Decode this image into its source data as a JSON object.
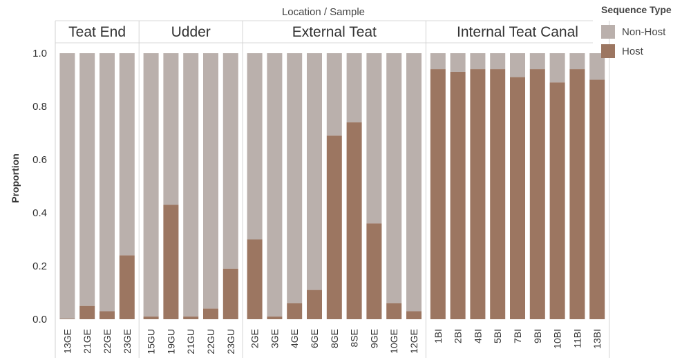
{
  "chart_data": {
    "type": "bar",
    "stacked": true,
    "title": "Location / Sample",
    "ylabel": "Proportion",
    "xlabel": "",
    "ylim": [
      0,
      1
    ],
    "yticks": [
      "0.0",
      "0.2",
      "0.4",
      "0.6",
      "0.8",
      "1.0"
    ],
    "grid": false,
    "legend": {
      "title": "Sequence Type",
      "placement": "top-right",
      "items": [
        {
          "label": "Non-Host",
          "color": "#BAB0AC"
        },
        {
          "label": "Host",
          "color": "#9C7661"
        }
      ]
    },
    "groups": [
      {
        "name": "Teat End",
        "categories": [
          "13GE",
          "21GE",
          "22GE",
          "23GE"
        ]
      },
      {
        "name": "Udder",
        "categories": [
          "15GU",
          "19GU",
          "21GU",
          "22GU",
          "23GU"
        ]
      },
      {
        "name": "External Teat",
        "categories": [
          "2GE",
          "3GE",
          "4GE",
          "6GE",
          "8GE",
          "8SE",
          "9GE",
          "10GE",
          "12GE"
        ]
      },
      {
        "name": "Internal Teat Canal",
        "categories": [
          "1BI",
          "2BI",
          "4BI",
          "5BI",
          "7BI",
          "9BI",
          "10BI",
          "11BI",
          "13BI"
        ]
      }
    ],
    "categories": [
      "13GE",
      "21GE",
      "22GE",
      "23GE",
      "15GU",
      "19GU",
      "21GU",
      "22GU",
      "23GU",
      "2GE",
      "3GE",
      "4GE",
      "6GE",
      "8GE",
      "8SE",
      "9GE",
      "10GE",
      "12GE",
      "1BI",
      "2BI",
      "4BI",
      "5BI",
      "7BI",
      "9BI",
      "10BI",
      "11BI",
      "13BI"
    ],
    "series": [
      {
        "name": "Host",
        "color": "#9C7661",
        "values": [
          0.002,
          0.05,
          0.03,
          0.24,
          0.01,
          0.43,
          0.01,
          0.04,
          0.19,
          0.3,
          0.01,
          0.06,
          0.11,
          0.69,
          0.74,
          0.36,
          0.06,
          0.03,
          0.94,
          0.93,
          0.94,
          0.94,
          0.91,
          0.94,
          0.89,
          0.94,
          0.9
        ]
      },
      {
        "name": "Non-Host",
        "color": "#BAB0AC",
        "values": [
          0.998,
          0.95,
          0.97,
          0.76,
          0.99,
          0.57,
          0.99,
          0.96,
          0.81,
          0.7,
          0.99,
          0.94,
          0.89,
          0.31,
          0.26,
          0.64,
          0.94,
          0.97,
          0.06,
          0.07,
          0.06,
          0.06,
          0.09,
          0.06,
          0.11,
          0.06,
          0.1
        ]
      }
    ]
  }
}
